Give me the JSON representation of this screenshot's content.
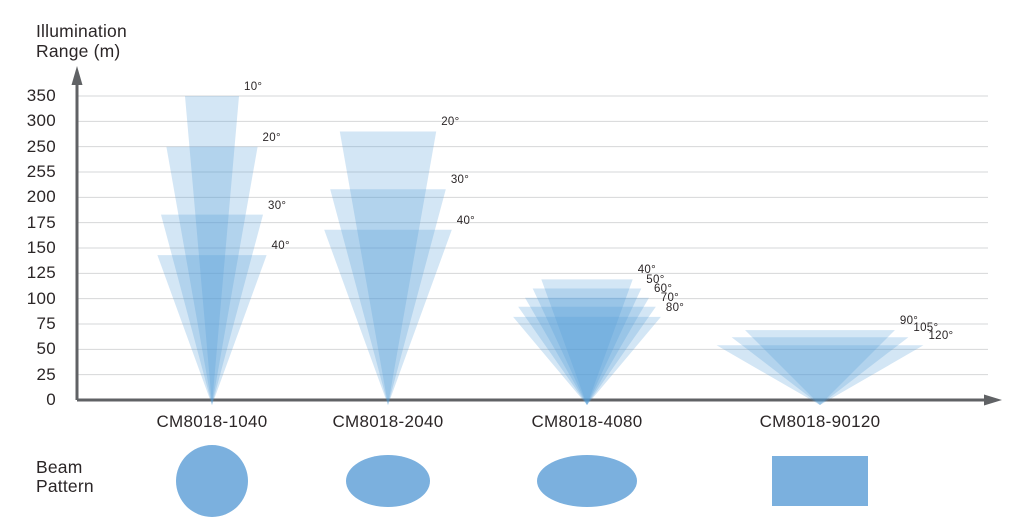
{
  "y_axis_title": "Illumination\nRange (m)",
  "beam_pattern_label": "Beam\nPattern",
  "colors": {
    "cone_fill": "#4f9ad6",
    "cone_opacity": "0.25",
    "beam_shape_fill": "#7bb0de",
    "axis": "#606265",
    "gridline": "#d6d7d8",
    "text": "#2b2627"
  },
  "chart_data": {
    "type": "area",
    "subtype": "illumination-beam-cone-fan",
    "title": "Illumination Range (m)",
    "ylabel": "Illumination Range (m)",
    "xlabel": "",
    "grid": true,
    "y_tick_labels_top_to_bottom": [
      "350",
      "300",
      "250",
      "255",
      "200",
      "175",
      "150",
      "125",
      "100",
      "75",
      "50",
      "25",
      "0"
    ],
    "y_axis_note": "Gridlines are evenly spaced; ticks step 25 m from 0 to 250, then 300 and 350 follow at the same pixel spacing (50 m steps). '255' is printed on the chart (apparent typo for 225).",
    "x_categories": [
      "CM8018-1040",
      "CM8018-2040",
      "CM8018-4080",
      "CM8018-90120"
    ],
    "models": [
      {
        "name": "CM8018-1040",
        "beam_pattern": "circle",
        "cones": [
          {
            "angle_label": "10°",
            "angle_deg": 10,
            "range_m": 350
          },
          {
            "angle_label": "20°",
            "angle_deg": 20,
            "range_m": 250
          },
          {
            "angle_label": "30°",
            "angle_deg": 30,
            "range_m": 183
          },
          {
            "angle_label": "40°",
            "angle_deg": 40,
            "range_m": 143
          }
        ]
      },
      {
        "name": "CM8018-2040",
        "beam_pattern": "ellipse",
        "cones": [
          {
            "angle_label": "20°",
            "angle_deg": 20,
            "range_m": 280
          },
          {
            "angle_label": "30°",
            "angle_deg": 30,
            "range_m": 208
          },
          {
            "angle_label": "40°",
            "angle_deg": 40,
            "range_m": 168
          }
        ]
      },
      {
        "name": "CM8018-4080",
        "beam_pattern": "wide-ellipse",
        "cones": [
          {
            "angle_label": "40°",
            "angle_deg": 40,
            "range_m": 119
          },
          {
            "angle_label": "50°",
            "angle_deg": 50,
            "range_m": 110
          },
          {
            "angle_label": "60°",
            "angle_deg": 60,
            "range_m": 101
          },
          {
            "angle_label": "70°",
            "angle_deg": 70,
            "range_m": 92
          },
          {
            "angle_label": "80°",
            "angle_deg": 80,
            "range_m": 82
          }
        ]
      },
      {
        "name": "CM8018-90120",
        "beam_pattern": "rectangle",
        "cones": [
          {
            "angle_label": "90°",
            "angle_deg": 90,
            "range_m": 69
          },
          {
            "angle_label": "105°",
            "angle_deg": 105,
            "range_m": 62
          },
          {
            "angle_label": "120°",
            "angle_deg": 120,
            "range_m": 54
          }
        ]
      }
    ],
    "values_note": "Range values (m) estimated from gridlines where not on a labeled line."
  }
}
